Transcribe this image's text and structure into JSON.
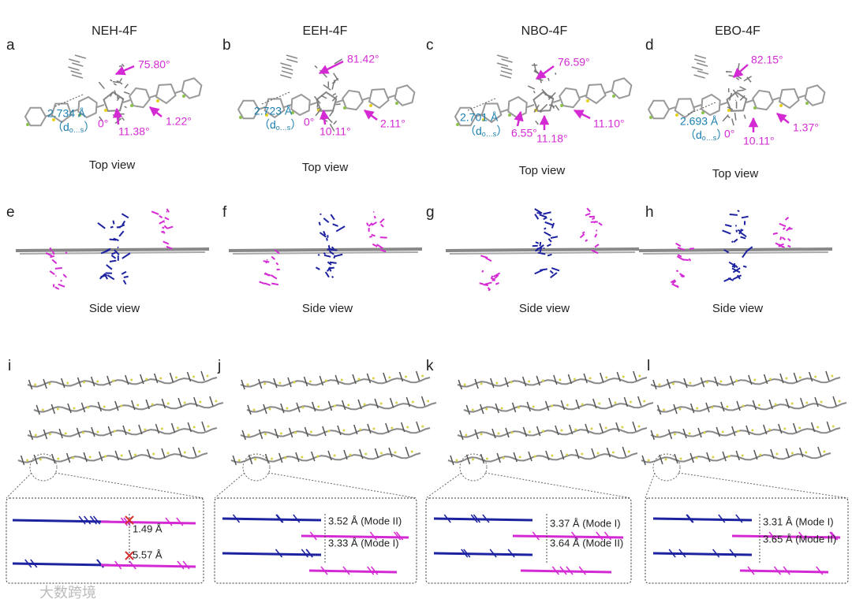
{
  "panels": [
    {
      "title": "NEH-4F",
      "top": {
        "letter": "a",
        "angles": [
          "75.80°",
          "0°",
          "11.38°",
          "1.22°"
        ],
        "distance": "2.734 Å",
        "d_open": "（d",
        "d_sub": "o…s",
        "d_close": "）",
        "caption": "Top view"
      },
      "side": {
        "letter": "e",
        "caption": "Side view"
      },
      "packing": {
        "letter": "i",
        "labels": [
          "1.49 Å",
          "5.57 Å"
        ]
      }
    },
    {
      "title": "EEH-4F",
      "top": {
        "letter": "b",
        "angles": [
          "81.42°",
          "0°",
          "10.11°",
          "2.11°"
        ],
        "distance": "2.723 Å",
        "d_open": "（d",
        "d_sub": "o…s",
        "d_close": "）",
        "caption": "Top view"
      },
      "side": {
        "letter": "f",
        "caption": "Side view"
      },
      "packing": {
        "letter": "j",
        "labels": [
          "3.52 Å (Mode II)",
          "3.33 Å (Mode I)"
        ]
      }
    },
    {
      "title": "NBO-4F",
      "top": {
        "letter": "c",
        "angles": [
          "76.59°",
          "6.55°",
          "11.18°",
          "11.10°"
        ],
        "distance": "2.701 Å",
        "d_open": "（d",
        "d_sub": "o…s",
        "d_close": "）",
        "caption": "Top view"
      },
      "side": {
        "letter": "g",
        "caption": "Side view"
      },
      "packing": {
        "letter": "k",
        "labels": [
          "3.37 Å (Mode I)",
          "3.64 Å (Mode II)"
        ]
      }
    },
    {
      "title": "EBO-4F",
      "top": {
        "letter": "d",
        "angles": [
          "82.15°",
          "0°",
          "10.11°",
          "1.37°"
        ],
        "distance": "2.693 Å",
        "d_open": "（d",
        "d_sub": "o…s",
        "d_close": "）",
        "caption": "Top view"
      },
      "side": {
        "letter": "h",
        "caption": "Side view"
      },
      "packing": {
        "letter": "l",
        "labels": [
          "3.31 Å (Mode I)",
          "3.65 Å (Mode II)"
        ]
      }
    }
  ],
  "watermark": "大数跨境"
}
